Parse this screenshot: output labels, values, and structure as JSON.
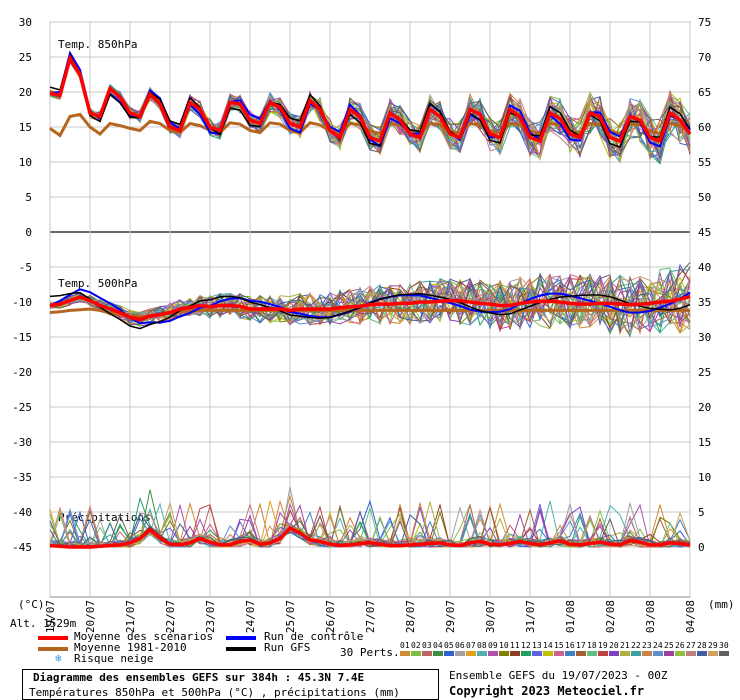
{
  "chart_data": {
    "type": "line",
    "title": "Diagramme des ensembles GEFS sur 384h : 45.3N 7.4E",
    "subtitle": "Températures 850hPa et 500hPa (°C) , précipitations (mm)",
    "left_axis_label": "(°C)",
    "right_axis_label": "(mm)",
    "left_ticks": [
      "30",
      "25",
      "20",
      "15",
      "10",
      "5",
      "0",
      "-5",
      "-10",
      "-15",
      "-20",
      "-25",
      "-30",
      "-35",
      "-40",
      "-45"
    ],
    "right_ticks": [
      "75",
      "70",
      "65",
      "60",
      "55",
      "50",
      "45",
      "40",
      "35",
      "30",
      "25",
      "20",
      "15",
      "10",
      "5",
      "0"
    ],
    "x_ticks": [
      "19/07",
      "20/07",
      "21/07",
      "22/07",
      "23/07",
      "24/07",
      "25/07",
      "26/07",
      "27/07",
      "28/07",
      "29/07",
      "30/07",
      "31/07",
      "01/08",
      "02/08",
      "03/08",
      "04/08"
    ],
    "panel_labels": [
      "Temp. 850hPa",
      "Temp. 500hPa",
      "Précipitations"
    ],
    "steps": 65,
    "step_hours": 6,
    "t850_mean": [
      19.8,
      19.5,
      24.8,
      22.5,
      17,
      16.5,
      20.5,
      19.3,
      17,
      16.5,
      19.7,
      18.3,
      15,
      14.5,
      18.5,
      17.5,
      15,
      14.5,
      18.5,
      18.3,
      16,
      15.5,
      18.5,
      17.8,
      15.5,
      15,
      18.8,
      17.5,
      14.5,
      13.5,
      17.5,
      16.5,
      13.5,
      13,
      17,
      16,
      14,
      13.5,
      17.5,
      16.5,
      14,
      13.5,
      17.5,
      16.8,
      14,
      13.5,
      17.5,
      16.5,
      13.5,
      13,
      17,
      16.2,
      14,
      13.5,
      17,
      16.5,
      13.5,
      13,
      16.5,
      16,
      13.5,
      13,
      17,
      16,
      14
    ],
    "t850_climo": [
      14.8,
      13.8,
      16.5,
      16.8,
      15,
      14,
      15.5,
      15.2,
      14.8,
      14.5,
      15.8,
      15.5,
      14.5,
      14.2,
      15.5,
      15.2,
      14.5,
      14.2,
      15.6,
      15.4,
      14.5,
      14.2,
      15.6,
      15.4,
      14.5,
      14.2,
      15.6,
      15.3,
      14.4,
      14.1,
      15.5,
      15.3,
      14.4,
      14.1,
      15.5,
      15.3,
      14.4,
      14.1,
      15.5,
      15.3,
      14.4,
      14.1,
      15.5,
      15.3,
      14.4,
      14.1,
      15.5,
      15.3,
      14.4,
      14.1,
      15.5,
      15.3,
      14.4,
      14.1,
      15.5,
      15.3,
      14.4,
      14.1,
      15.5,
      15.3,
      14.4,
      14.1,
      15.5,
      15.2,
      14.4
    ],
    "t500_mean": [
      -10.5,
      -10.3,
      -9.8,
      -9.3,
      -9.8,
      -10.5,
      -11,
      -11.5,
      -12.2,
      -12.5,
      -12,
      -11.8,
      -11.5,
      -11,
      -10.8,
      -10.5,
      -10.7,
      -10.5,
      -10.5,
      -10.6,
      -11,
      -11,
      -11,
      -11,
      -11.2,
      -11,
      -11,
      -11,
      -11,
      -10.8,
      -10.7,
      -10.6,
      -10.4,
      -10.3,
      -10.3,
      -10.2,
      -10.2,
      -10,
      -10,
      -9.9,
      -9.8,
      -9.8,
      -10,
      -10.2,
      -10.3,
      -10.5,
      -10.5,
      -10.2,
      -10,
      -9.9,
      -9.9,
      -10,
      -10.2,
      -10.3,
      -10.3,
      -10.2,
      -10.2,
      -10.3,
      -10.4,
      -10.3,
      -10.2,
      -10,
      -9.9,
      -9.6,
      -9.2
    ],
    "t500_climo": [
      -11.5,
      -11.4,
      -11.2,
      -11.1,
      -11,
      -11.2,
      -11.6,
      -11.8,
      -12,
      -12.1,
      -12,
      -11.8,
      -11.6,
      -11.4,
      -11.3,
      -11.2,
      -11.2,
      -11.2,
      -11.2,
      -11.2,
      -11.2,
      -11.2,
      -11.2,
      -11.2,
      -11.2,
      -11.2,
      -11.2,
      -11.2,
      -11.2,
      -11.2,
      -11.2,
      -11.2,
      -11.2,
      -11.2,
      -11.2,
      -11.2,
      -11.2,
      -11.2,
      -11.2,
      -11.2,
      -11.2,
      -11.2,
      -11.2,
      -11.2,
      -11.2,
      -11.2,
      -11.2,
      -11.2,
      -11.2,
      -11.2,
      -11.2,
      -11.2,
      -11.2,
      -11.2,
      -11.2,
      -11.2,
      -11.2,
      -11.2,
      -11.2,
      -11.2,
      -11.2,
      -11.2,
      -11.2,
      -11.2,
      -11.2
    ],
    "precip_mean": [
      0.2,
      0.1,
      0,
      0,
      0,
      0.1,
      0.2,
      0.3,
      0.6,
      1.2,
      2.5,
      1.3,
      0.4,
      0.3,
      0.6,
      1.2,
      0.7,
      0.3,
      0.3,
      0.8,
      1,
      0.4,
      0.6,
      1.2,
      2.7,
      2,
      1,
      0.8,
      0.4,
      0.2,
      0.3,
      0.5,
      0.6,
      0.4,
      0.2,
      0.2,
      0.3,
      0.4,
      0.5,
      0.6,
      0.3,
      0.2,
      0.6,
      0.8,
      0.4,
      0.3,
      0.5,
      0.8,
      0.5,
      0.3,
      0.6,
      0.9,
      0.4,
      0.3,
      0.5,
      0.7,
      0.4,
      0.3,
      0.9,
      0.7,
      0.3,
      0.3,
      0.6,
      0.5,
      0.3
    ],
    "legend": {
      "mean": "Moyenne des scénarios",
      "climo": "Moyenne 1981-2010",
      "snow": "Risque neige",
      "control": "Run de contrôle",
      "gfs": "Run GFS",
      "perts": "30 Perts."
    },
    "pert_labels": [
      "01",
      "02",
      "03",
      "04",
      "05",
      "06",
      "07",
      "08",
      "09",
      "10",
      "11",
      "12",
      "13",
      "14",
      "15",
      "16",
      "17",
      "18",
      "19",
      "20",
      "21",
      "22",
      "23",
      "24",
      "25",
      "26",
      "27",
      "28",
      "29",
      "30"
    ],
    "pert_colors": [
      "#d08b35",
      "#7fbf3f",
      "#c06060",
      "#3f8f3f",
      "#3060d0",
      "#a0a0a0",
      "#e0a020",
      "#50b0b0",
      "#b04fb0",
      "#808000",
      "#904020",
      "#20a060",
      "#6060e0",
      "#c0c000",
      "#d06090",
      "#4080c0",
      "#a06030",
      "#60c080",
      "#c04040",
      "#8040c0",
      "#b0b040",
      "#40a0a0",
      "#d08040",
      "#6090d0",
      "#a040a0",
      "#90c040",
      "#c08080",
      "#4060a0",
      "#d0a060",
      "#606060"
    ],
    "colors": {
      "mean": "#ff0000",
      "climo": "#b5651d",
      "control": "#0000ff",
      "gfs": "#000000"
    },
    "grid": true
  },
  "footer": {
    "title": "Diagramme des ensembles GEFS sur 384h : 45.3N 7.4E",
    "subtitle": "Températures 850hPa et 500hPa (°C) , précipitations (mm)",
    "run": "Ensemble GEFS du 19/07/2023 - 00Z",
    "copyright": "Copyright 2023 Meteociel.fr",
    "altitude": "Alt. 1529m"
  }
}
